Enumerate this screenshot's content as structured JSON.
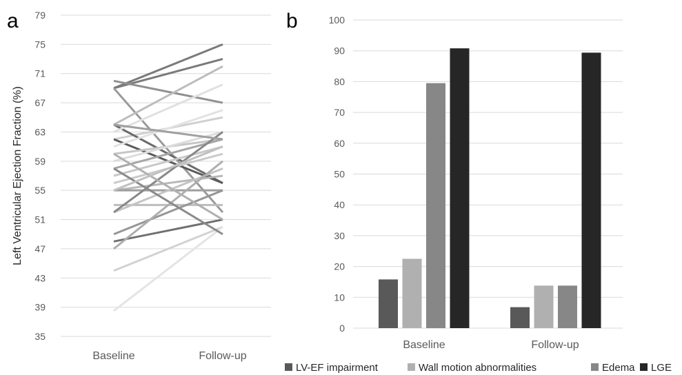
{
  "chart_data": [
    {
      "panel_label": "a",
      "type": "line",
      "ylabel": "Left Ventricular Ejection Fraction (%)",
      "categories": [
        "Baseline",
        "Follow-up"
      ],
      "ylim": [
        35,
        79
      ],
      "yticks": [
        35,
        39,
        43,
        47,
        51,
        55,
        59,
        63,
        67,
        71,
        75,
        79
      ],
      "grid": true,
      "series_values": [
        {
          "values": [
            69,
            75
          ],
          "color": "#7a7a7a"
        },
        {
          "values": [
            69,
            73
          ],
          "color": "#7a7a7a"
        },
        {
          "values": [
            70,
            67
          ],
          "color": "#909090"
        },
        {
          "values": [
            69,
            52
          ],
          "color": "#9a9a9a"
        },
        {
          "values": [
            64,
            72
          ],
          "color": "#bcbcbc"
        },
        {
          "values": [
            62,
            65
          ],
          "color": "#d0d0d0"
        },
        {
          "values": [
            64,
            56
          ],
          "color": "#6a6a6a"
        },
        {
          "values": [
            62,
            56
          ],
          "color": "#5a5a5a"
        },
        {
          "values": [
            63,
            69.5
          ],
          "color": "#e0e0e0"
        },
        {
          "values": [
            61,
            66
          ],
          "color": "#e2e2e2"
        },
        {
          "values": [
            60,
            62
          ],
          "color": "#c6c6c6"
        },
        {
          "values": [
            59,
            63
          ],
          "color": "#dcdcdc"
        },
        {
          "values": [
            58,
            62
          ],
          "color": "#a6a6a6"
        },
        {
          "values": [
            57,
            61
          ],
          "color": "#c8c8c8"
        },
        {
          "values": [
            56,
            60
          ],
          "color": "#cacaca"
        },
        {
          "values": [
            55,
            57
          ],
          "color": "#b8b8b8"
        },
        {
          "values": [
            55,
            55
          ],
          "color": "#9e9e9e"
        },
        {
          "values": [
            53,
            53
          ],
          "color": "#bdbdbd"
        },
        {
          "values": [
            52,
            58
          ],
          "color": "#c4c4c4"
        },
        {
          "values": [
            52,
            63
          ],
          "color": "#888888"
        },
        {
          "values": [
            49,
            55
          ],
          "color": "#969696"
        },
        {
          "values": [
            48,
            51
          ],
          "color": "#707070"
        },
        {
          "values": [
            47,
            59
          ],
          "color": "#aeaeae"
        },
        {
          "values": [
            44,
            50
          ],
          "color": "#d2d2d2"
        },
        {
          "values": [
            38.5,
            50
          ],
          "color": "#e4e4e4"
        },
        {
          "values": [
            58,
            49
          ],
          "color": "#8a8a8a"
        },
        {
          "values": [
            60,
            51
          ],
          "color": "#b0b0b0"
        },
        {
          "values": [
            64,
            62
          ],
          "color": "#a0a0a0"
        },
        {
          "values": [
            55,
            61
          ],
          "color": "#c0c0c0"
        }
      ]
    },
    {
      "panel_label": "b",
      "type": "bar",
      "categories": [
        "Baseline",
        "Follow-up"
      ],
      "ylim": [
        0,
        100
      ],
      "yticks": [
        0,
        10,
        20,
        30,
        40,
        50,
        60,
        70,
        80,
        90,
        100
      ],
      "grid": true,
      "legend_position": "bottom",
      "series": [
        {
          "name": "LV-EF impairment",
          "values": [
            15.8,
            6.8
          ],
          "color": "#595959"
        },
        {
          "name": "Wall motion abnormalities",
          "values": [
            22.5,
            13.8
          ],
          "color": "#b0b0b0"
        },
        {
          "name": "Edema",
          "values": [
            79.5,
            13.8
          ],
          "color": "#878787"
        },
        {
          "name": "LGE",
          "values": [
            90.8,
            89.4
          ],
          "color": "#262626"
        }
      ]
    }
  ]
}
